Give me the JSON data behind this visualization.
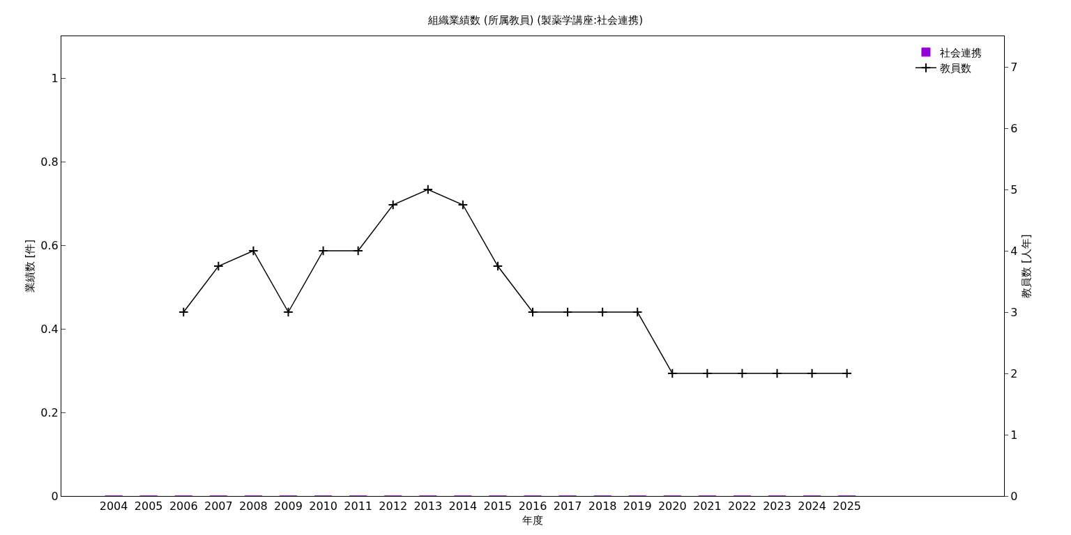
{
  "chart_data": {
    "type": "bar",
    "title": "組織業績数 (所属教員) (製薬学講座:社会連携)",
    "xlabel": "年度",
    "ylabel": "業績数 [件]",
    "y2label": "教員数 [人年]",
    "categories": [
      null,
      "2004",
      "2005",
      "2006",
      "2007",
      "2008",
      "2009",
      "2010",
      "2011",
      "2012",
      "2013",
      "2014",
      "2015",
      "2016",
      "2017",
      "2018",
      "2019",
      "2020",
      "2021",
      "2022",
      "2023",
      "2024",
      "2025",
      null,
      null,
      null,
      null
    ],
    "series": [
      {
        "name": "社会連携",
        "color": "#9400d3",
        "values": [
          null,
          0,
          0,
          0,
          0,
          0,
          0,
          0,
          0,
          0,
          0,
          0,
          0,
          0,
          0,
          0,
          0,
          0,
          0,
          0,
          0,
          0,
          0,
          null,
          null,
          null,
          null
        ]
      },
      {
        "name": "教員数",
        "type": "line",
        "axis": "y2",
        "color": "#000000",
        "marker": "cross",
        "line_style": "solid",
        "values": [
          null,
          null,
          null,
          3,
          3.75,
          4,
          3,
          4,
          4,
          4.75,
          5,
          4.75,
          3.75,
          3,
          3,
          3,
          3,
          2,
          2,
          2,
          2,
          2,
          2,
          null,
          null,
          null,
          null
        ]
      }
    ],
    "ylim": [
      0,
      1.1
    ],
    "yticks": [
      0,
      0.2,
      0.4,
      0.6,
      0.8,
      1
    ],
    "y2lim": [
      0,
      7.5
    ],
    "y2ticks": [
      0,
      1,
      2,
      3,
      4,
      5,
      6,
      7
    ],
    "grid": false,
    "legend": "top right"
  }
}
